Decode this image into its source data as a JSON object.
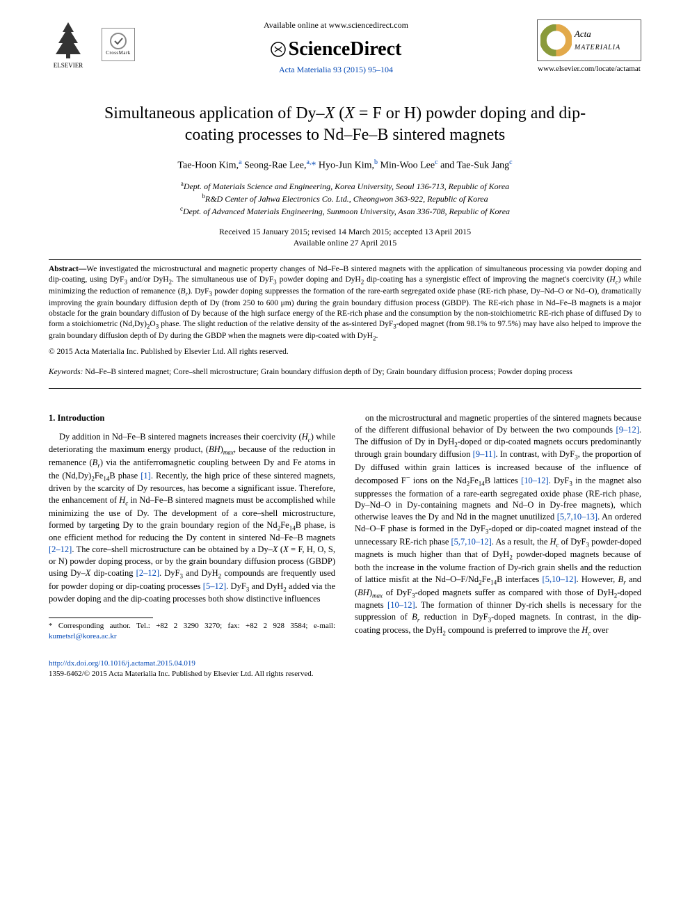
{
  "header": {
    "available_text": "Available online at www.sciencedirect.com",
    "sd_brand": "ScienceDirect",
    "journal_citation": "Acta Materialia 93 (2015) 95–104",
    "elsevier_label": "ELSEVIER",
    "crossmark_label": "CrossMark",
    "acta_line1": "Acta",
    "acta_line2": "MATERIALIA",
    "locate_url": "www.elsevier.com/locate/actamat"
  },
  "title": "Simultaneous application of Dy–X (X = F or H) powder doping and dip-coating processes to Nd–Fe–B sintered magnets",
  "authors_html": "Tae-Hoon Kim,<sup>a</sup> Seong-Rae Lee,<sup>a,</sup><span class=\"star\">*</span> Hyo-Jun Kim,<sup>b</sup> Min-Woo Lee<sup>c</sup> and Tae-Suk Jang<sup>c</sup>",
  "affiliations": [
    {
      "sup": "a",
      "text": "Dept. of Materials Science and Engineering, Korea University, Seoul 136-713, Republic of Korea"
    },
    {
      "sup": "b",
      "text": "R&D Center of Jahwa Electronics Co. Ltd., Cheongwon 363-922, Republic of Korea"
    },
    {
      "sup": "c",
      "text": "Dept. of Advanced Materials Engineering, Sunmoon University, Asan 336-708, Republic of Korea"
    }
  ],
  "dates": {
    "line1": "Received 15 January 2015; revised 14 March 2015; accepted 13 April 2015",
    "line2": "Available online 27 April 2015"
  },
  "abstract_label": "Abstract—",
  "abstract_html": "We investigated the microstructural and magnetic property changes of Nd–Fe–B sintered magnets with the application of simultaneous processing via powder doping and dip-coating, using DyF<sub>3</sub> and/or DyH<sub>2</sub>. The simultaneous use of DyF<sub>3</sub> powder doping and DyH<sub>2</sub> dip-coating has a synergistic effect of improving the magnet's coercivity (<i>H<sub>c</sub></i>) while minimizing the reduction of remanence (<i>B<sub>r</sub></i>). DyF<sub>3</sub> powder doping suppresses the formation of the rare-earth segregated oxide phase (RE-rich phase, Dy–Nd–O or Nd–O), dramatically improving the grain boundary diffusion depth of Dy (from 250 to 600 μm) during the grain boundary diffusion process (GBDP). The RE-rich phase in Nd–Fe–B magnets is a major obstacle for the grain boundary diffusion of Dy because of the high surface energy of the RE-rich phase and the consumption by the non-stoichiometric RE-rich phase of diffused Dy to form a stoichiometric (Nd,Dy)<sub>2</sub>O<sub>3</sub> phase. The slight reduction of the relative density of the as-sintered DyF<sub>3</sub>-doped magnet (from 98.1% to 97.5%) may have also helped to improve the grain boundary diffusion depth of Dy during the GBDP when the magnets were dip-coated with DyH<sub>2</sub>.",
  "copyright_line": "© 2015 Acta Materialia Inc. Published by Elsevier Ltd. All rights reserved.",
  "keywords_label": "Keywords:",
  "keywords_text": " Nd–Fe–B sintered magnet; Core–shell microstructure; Grain boundary diffusion depth of Dy; Grain boundary diffusion process; Powder doping process",
  "section1_heading": "1. Introduction",
  "col1_html": "Dy addition in Nd–Fe–B sintered magnets increases their coercivity (<i>H<sub>c</sub></i>) while deteriorating the maximum energy product, (<i>BH</i>)<i><sub>max</sub></i>, because of the reduction in remanence (<i>B<sub>r</sub></i>) via the antiferromagnetic coupling between Dy and Fe atoms in the (Nd,Dy)<sub>2</sub>Fe<sub>14</sub>B phase <span class=\"ref-link\">[1]</span>. Recently, the high price of these sintered magnets, driven by the scarcity of Dy resources, has become a significant issue. Therefore, the enhancement of <i>H<sub>c</sub></i> in Nd–Fe–B sintered magnets must be accomplished while minimizing the use of Dy. The development of a core–shell microstructure, formed by targeting Dy to the grain boundary region of the Nd<sub>2</sub>Fe<sub>14</sub>B phase, is one efficient method for reducing the Dy content in sintered Nd–Fe–B magnets <span class=\"ref-link\">[2–12]</span>. The core–shell microstructure can be obtained by a Dy–<i>X</i> (<i>X</i> = F, H, O, S, or N) powder doping process, or by the grain boundary diffusion process (GBDP) using Dy–<i>X</i> dip-coating <span class=\"ref-link\">[2–12]</span>. DyF<sub>3</sub> and DyH<sub>2</sub> compounds are frequently used for powder doping or dip-coating processes <span class=\"ref-link\">[5–12]</span>. DyF<sub>3</sub> and DyH<sub>2</sub> added via the powder doping and the dip-coating processes both show distinctive influences",
  "col2_html": "on the microstructural and magnetic properties of the sintered magnets because of the different diffusional behavior of Dy between the two compounds <span class=\"ref-link\">[9–12]</span>. The diffusion of Dy in DyH<sub>2</sub>-doped or dip-coated magnets occurs predominantly through grain boundary diffusion <span class=\"ref-link\">[9–11]</span>. In contrast, with DyF<sub>3</sub>, the proportion of Dy diffused within grain lattices is increased because of the influence of decomposed F<sup>−</sup> ions on the Nd<sub>2</sub>Fe<sub>14</sub>B lattices <span class=\"ref-link\">[10–12]</span>. DyF<sub>3</sub> in the magnet also suppresses the formation of a rare-earth segregated oxide phase (RE-rich phase, Dy–Nd–O in Dy-containing magnets and Nd–O in Dy-free magnets), which otherwise leaves the Dy and Nd in the magnet unutilized <span class=\"ref-link\">[5,7,10–13]</span>. An ordered Nd–O–F phase is formed in the DyF<sub>3</sub>-doped or dip-coated magnet instead of the unnecessary RE-rich phase <span class=\"ref-link\">[5,7,10–12]</span>. As a result, the <i>H<sub>c</sub></i> of DyF<sub>3</sub> powder-doped magnets is much higher than that of DyH<sub>2</sub> powder-doped magnets because of both the increase in the volume fraction of Dy-rich grain shells and the reduction of lattice misfit at the Nd–O–F/Nd<sub>2</sub>Fe<sub>14</sub>B interfaces <span class=\"ref-link\">[5,10–12]</span>. However, <i>B<sub>r</sub></i> and (<i>BH</i>)<i><sub>max</sub></i> of DyF<sub>3</sub>-doped magnets suffer as compared with those of DyH<sub>2</sub>-doped magnets <span class=\"ref-link\">[10–12]</span>. The formation of thinner Dy-rich shells is necessary for the suppression of <i>B<sub>r</sub></i> reduction in DyF<sub>3</sub>-doped magnets. In contrast, in the dip-coating process, the DyH<sub>2</sub> compound is preferred to improve the <i>H<sub>c</sub></i> over",
  "footnote": {
    "marker": "*",
    "prefix": "Corresponding author. Tel.: +82 2 3290 3270; fax: +82 2 928 3584; e-mail: ",
    "email": "kumetsrl@korea.ac.kr"
  },
  "doi": "http://dx.doi.org/10.1016/j.actamat.2015.04.019",
  "issn_copyright": "1359-6462/© 2015 Acta Materialia Inc. Published by Elsevier Ltd. All rights reserved.",
  "colors": {
    "link": "#0046b5",
    "text": "#000000",
    "background": "#ffffff"
  }
}
